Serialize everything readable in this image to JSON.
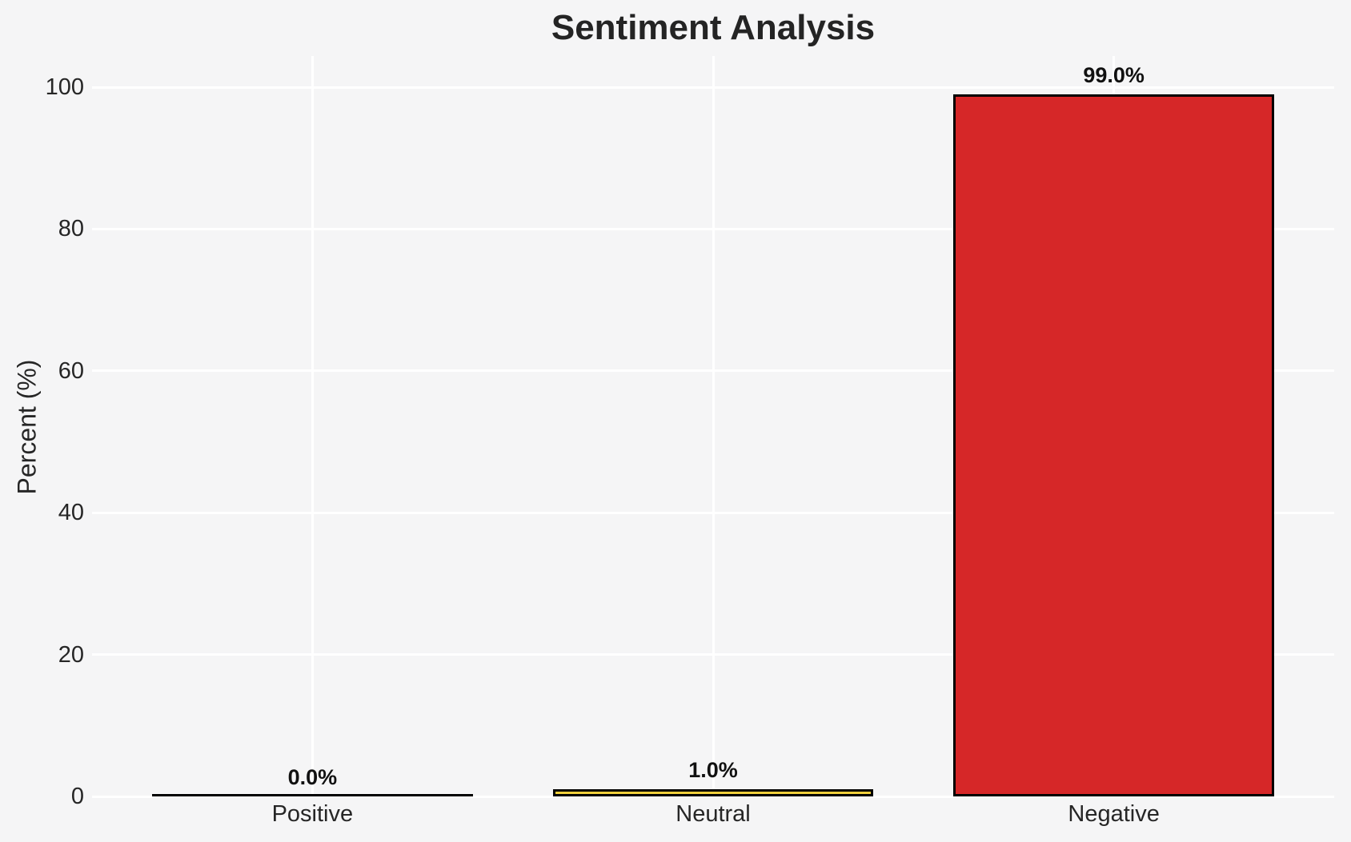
{
  "chart_data": {
    "type": "bar",
    "title": "Sentiment Analysis",
    "ylabel": "Percent (%)",
    "xlabel": "",
    "categories": [
      "Positive",
      "Neutral",
      "Negative"
    ],
    "values": [
      0.0,
      1.0,
      99.0
    ],
    "bar_labels": [
      "0.0%",
      "1.0%",
      "99.0%"
    ],
    "bar_colors": [
      null,
      "#f0d03c",
      "#d62728"
    ],
    "bar_edge_color": "#000000",
    "yticks": [
      0,
      20,
      40,
      60,
      80,
      100
    ],
    "ylim": [
      0,
      104.4
    ],
    "xlim": [
      -0.55,
      2.55
    ],
    "bar_width": 0.8,
    "grid": true,
    "gridline_color": "#ffffff",
    "background_color": "#f5f5f6",
    "text_color": "#262626",
    "legend": "none"
  }
}
